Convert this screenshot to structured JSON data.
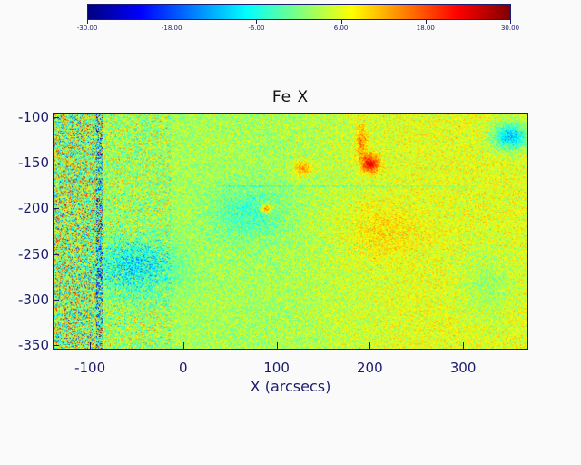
{
  "title": "Fe X",
  "colorbar": {
    "min": -30,
    "max": 30,
    "labels": [
      "-30.00",
      "-18.00",
      "-6.00",
      "6.00",
      "18.00",
      "30.00"
    ]
  },
  "axes": {
    "x_title": "X (arcsecs)",
    "x_range": [
      -140,
      370
    ],
    "x_ticks": [
      "-100",
      "0",
      "100",
      "200",
      "300"
    ],
    "y_range": [
      -355,
      -95
    ],
    "y_ticks": [
      "-100",
      "-150",
      "-200",
      "-250",
      "-300",
      "-350"
    ]
  }
}
